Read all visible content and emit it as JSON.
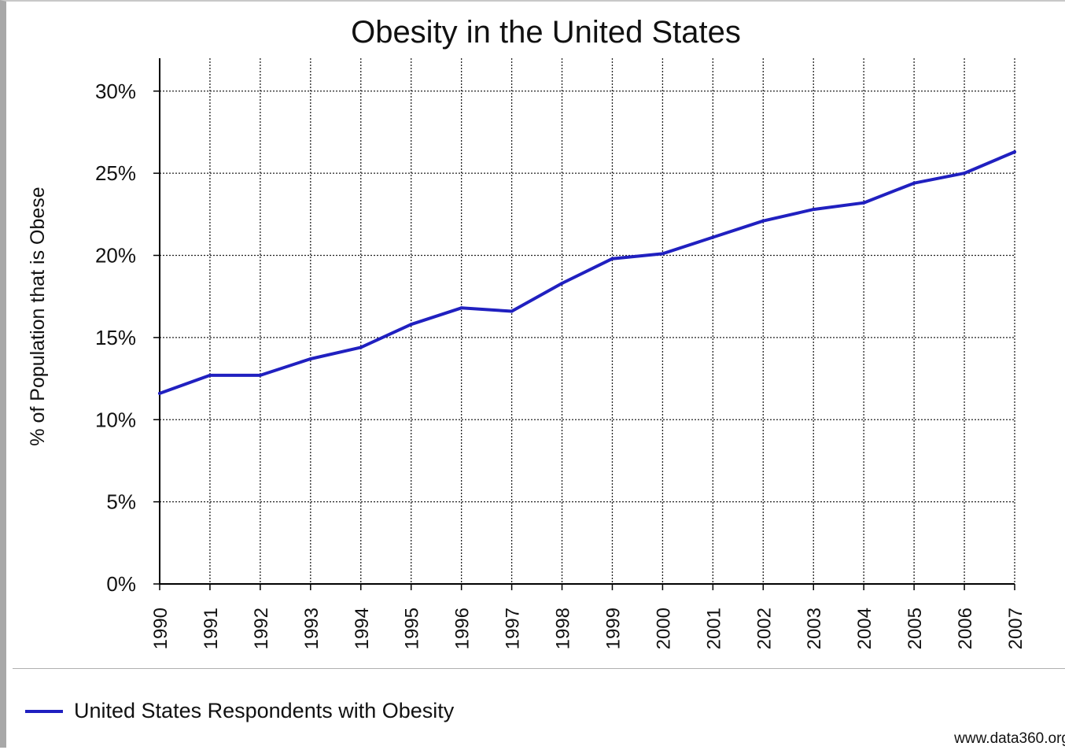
{
  "chart_data": {
    "type": "line",
    "title": "Obesity in the United States",
    "xlabel": "",
    "ylabel": "% of Population that is Obese",
    "x": [
      "1990",
      "1991",
      "1992",
      "1993",
      "1994",
      "1995",
      "1996",
      "1997",
      "1998",
      "1999",
      "2000",
      "2001",
      "2002",
      "2003",
      "2004",
      "2005",
      "2006",
      "2007"
    ],
    "ylim": [
      0,
      32
    ],
    "yticks": [
      0,
      5,
      10,
      15,
      20,
      25,
      30
    ],
    "ytick_labels": [
      "0%",
      "5%",
      "10%",
      "15%",
      "20%",
      "25%",
      "30%"
    ],
    "grid": true,
    "legend_position": "bottom-left",
    "series": [
      {
        "name": "United States Respondents with Obesity",
        "color": "#2020c0",
        "values": [
          11.6,
          12.7,
          12.7,
          13.7,
          14.4,
          15.8,
          16.8,
          16.6,
          18.3,
          19.8,
          20.1,
          21.1,
          22.1,
          22.8,
          23.2,
          24.4,
          25.0,
          26.3
        ]
      }
    ]
  },
  "source_credit": "www.data360.org"
}
